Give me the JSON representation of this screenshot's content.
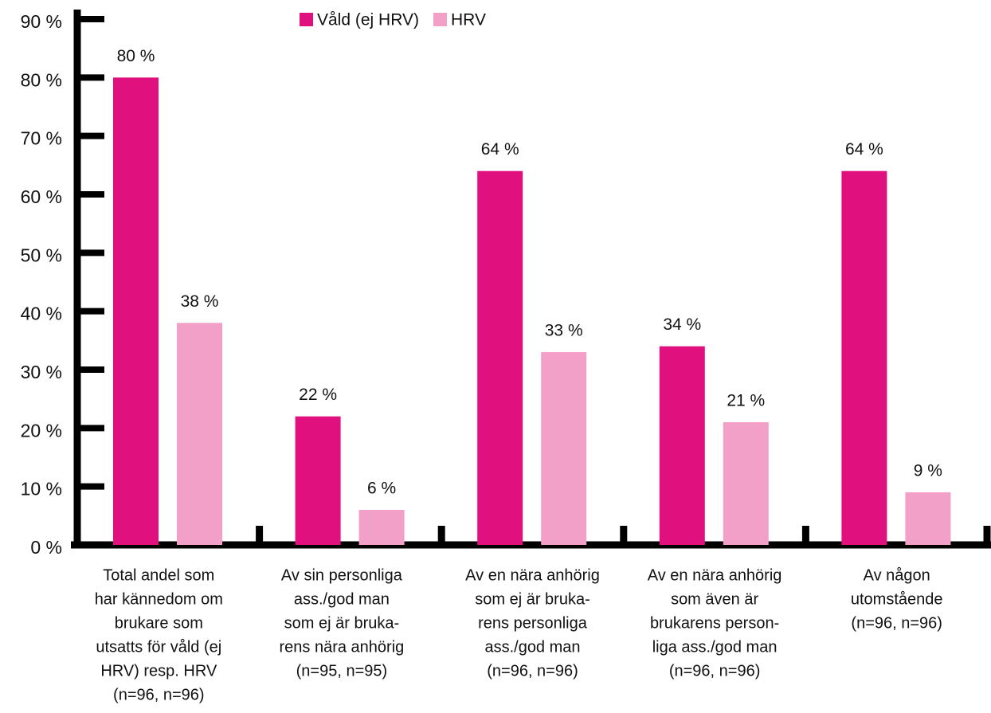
{
  "chart_data": {
    "type": "bar",
    "categories": [
      [
        "Total andel som",
        "har kännedom om",
        "brukare som",
        "utsatts för våld (ej",
        "HRV) resp. HRV",
        "(n=96, n=96)"
      ],
      [
        "Av sin personliga",
        "ass./god man",
        "som ej är bruka-",
        "rens nära anhörig",
        "(n=95, n=95)"
      ],
      [
        "Av en nära anhörig",
        "som ej är bruka-",
        "rens personliga",
        "ass./god man",
        "(n=96, n=96)"
      ],
      [
        "Av en nära anhörig",
        "som även är",
        "brukarens person-",
        "liga ass./god man",
        "(n=96, n=96)"
      ],
      [
        "Av någon",
        "utomstående",
        "(n=96, n=96)"
      ]
    ],
    "series": [
      {
        "name": "Våld (ej HRV)",
        "color": "#e0117f",
        "values": [
          80,
          22,
          64,
          34,
          64
        ],
        "value_labels": [
          "80 %",
          "22 %",
          "64 %",
          "34 %",
          "64 %"
        ]
      },
      {
        "name": "HRV",
        "color": "#f2a0c8",
        "values": [
          38,
          6,
          33,
          21,
          9
        ],
        "value_labels": [
          "38 %",
          "6 %",
          "33 %",
          "21 %",
          "9 %"
        ]
      }
    ],
    "ylim": [
      0,
      90
    ],
    "yticks": [
      {
        "value": 0,
        "label": "0 %"
      },
      {
        "value": 10,
        "label": "10 %"
      },
      {
        "value": 20,
        "label": "20 %"
      },
      {
        "value": 30,
        "label": "30 %"
      },
      {
        "value": 40,
        "label": "40 %"
      },
      {
        "value": 50,
        "label": "50 %"
      },
      {
        "value": 60,
        "label": "60 %"
      },
      {
        "value": 70,
        "label": "70 %"
      },
      {
        "value": 80,
        "label": "80 %"
      },
      {
        "value": 90,
        "label": "90 %"
      }
    ],
    "legend": "top"
  }
}
